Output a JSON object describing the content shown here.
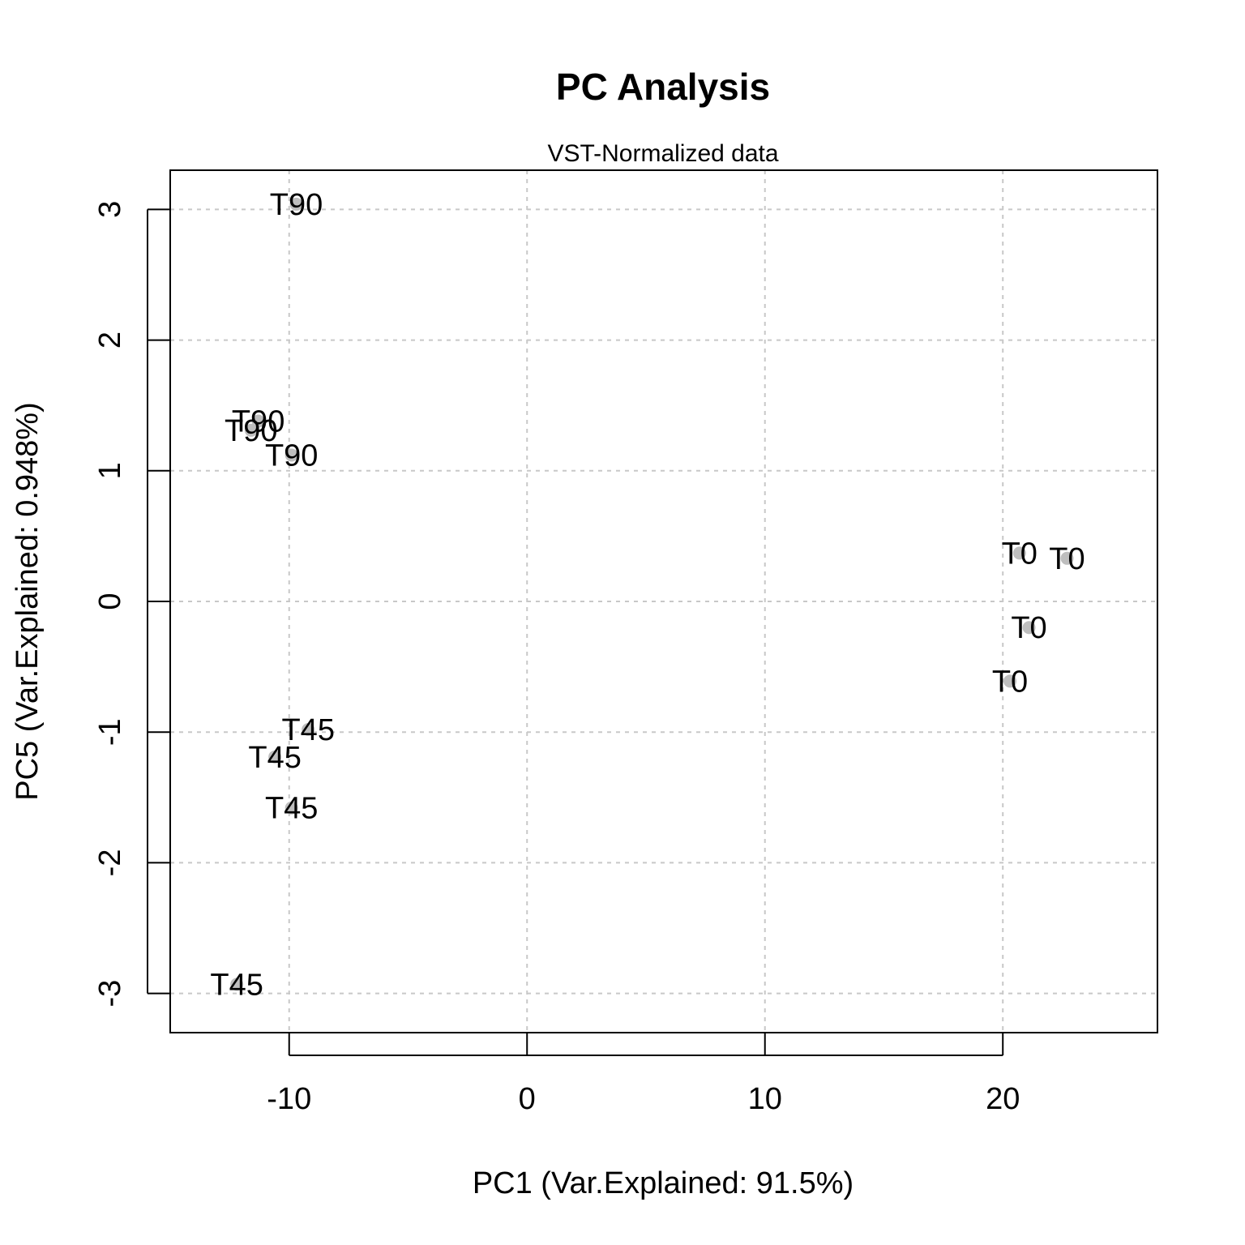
{
  "chart_data": {
    "type": "scatter",
    "title": "PC Analysis",
    "subtitle": "VST-Normalized data",
    "xlabel": "PC1 (Var.Explained: 91.5%)",
    "ylabel": "PC5 (Var.Explained: 0.948%)",
    "xlim": [
      -15,
      26.5
    ],
    "ylim": [
      -3.3,
      3.3
    ],
    "x_ticks": [
      -10,
      0,
      10,
      20
    ],
    "y_ticks": [
      -3,
      -2,
      -1,
      0,
      1,
      2,
      3
    ],
    "grid": true,
    "point_color": "#bebebe",
    "points": [
      {
        "x": -9.7,
        "y": 3.04,
        "label": "T90"
      },
      {
        "x": -11.3,
        "y": 1.38,
        "label": "T90"
      },
      {
        "x": -11.6,
        "y": 1.31,
        "label": "T90"
      },
      {
        "x": -9.9,
        "y": 1.12,
        "label": "T90"
      },
      {
        "x": 20.7,
        "y": 0.37,
        "label": "T0"
      },
      {
        "x": 22.7,
        "y": 0.33,
        "label": "T0"
      },
      {
        "x": 21.1,
        "y": -0.2,
        "label": "T0"
      },
      {
        "x": 20.3,
        "y": -0.61,
        "label": "T0"
      },
      {
        "x": -9.2,
        "y": -0.98,
        "label": "T45"
      },
      {
        "x": -10.6,
        "y": -1.19,
        "label": "T45"
      },
      {
        "x": -9.9,
        "y": -1.58,
        "label": "T45"
      },
      {
        "x": -12.2,
        "y": -2.93,
        "label": "T45"
      }
    ]
  }
}
